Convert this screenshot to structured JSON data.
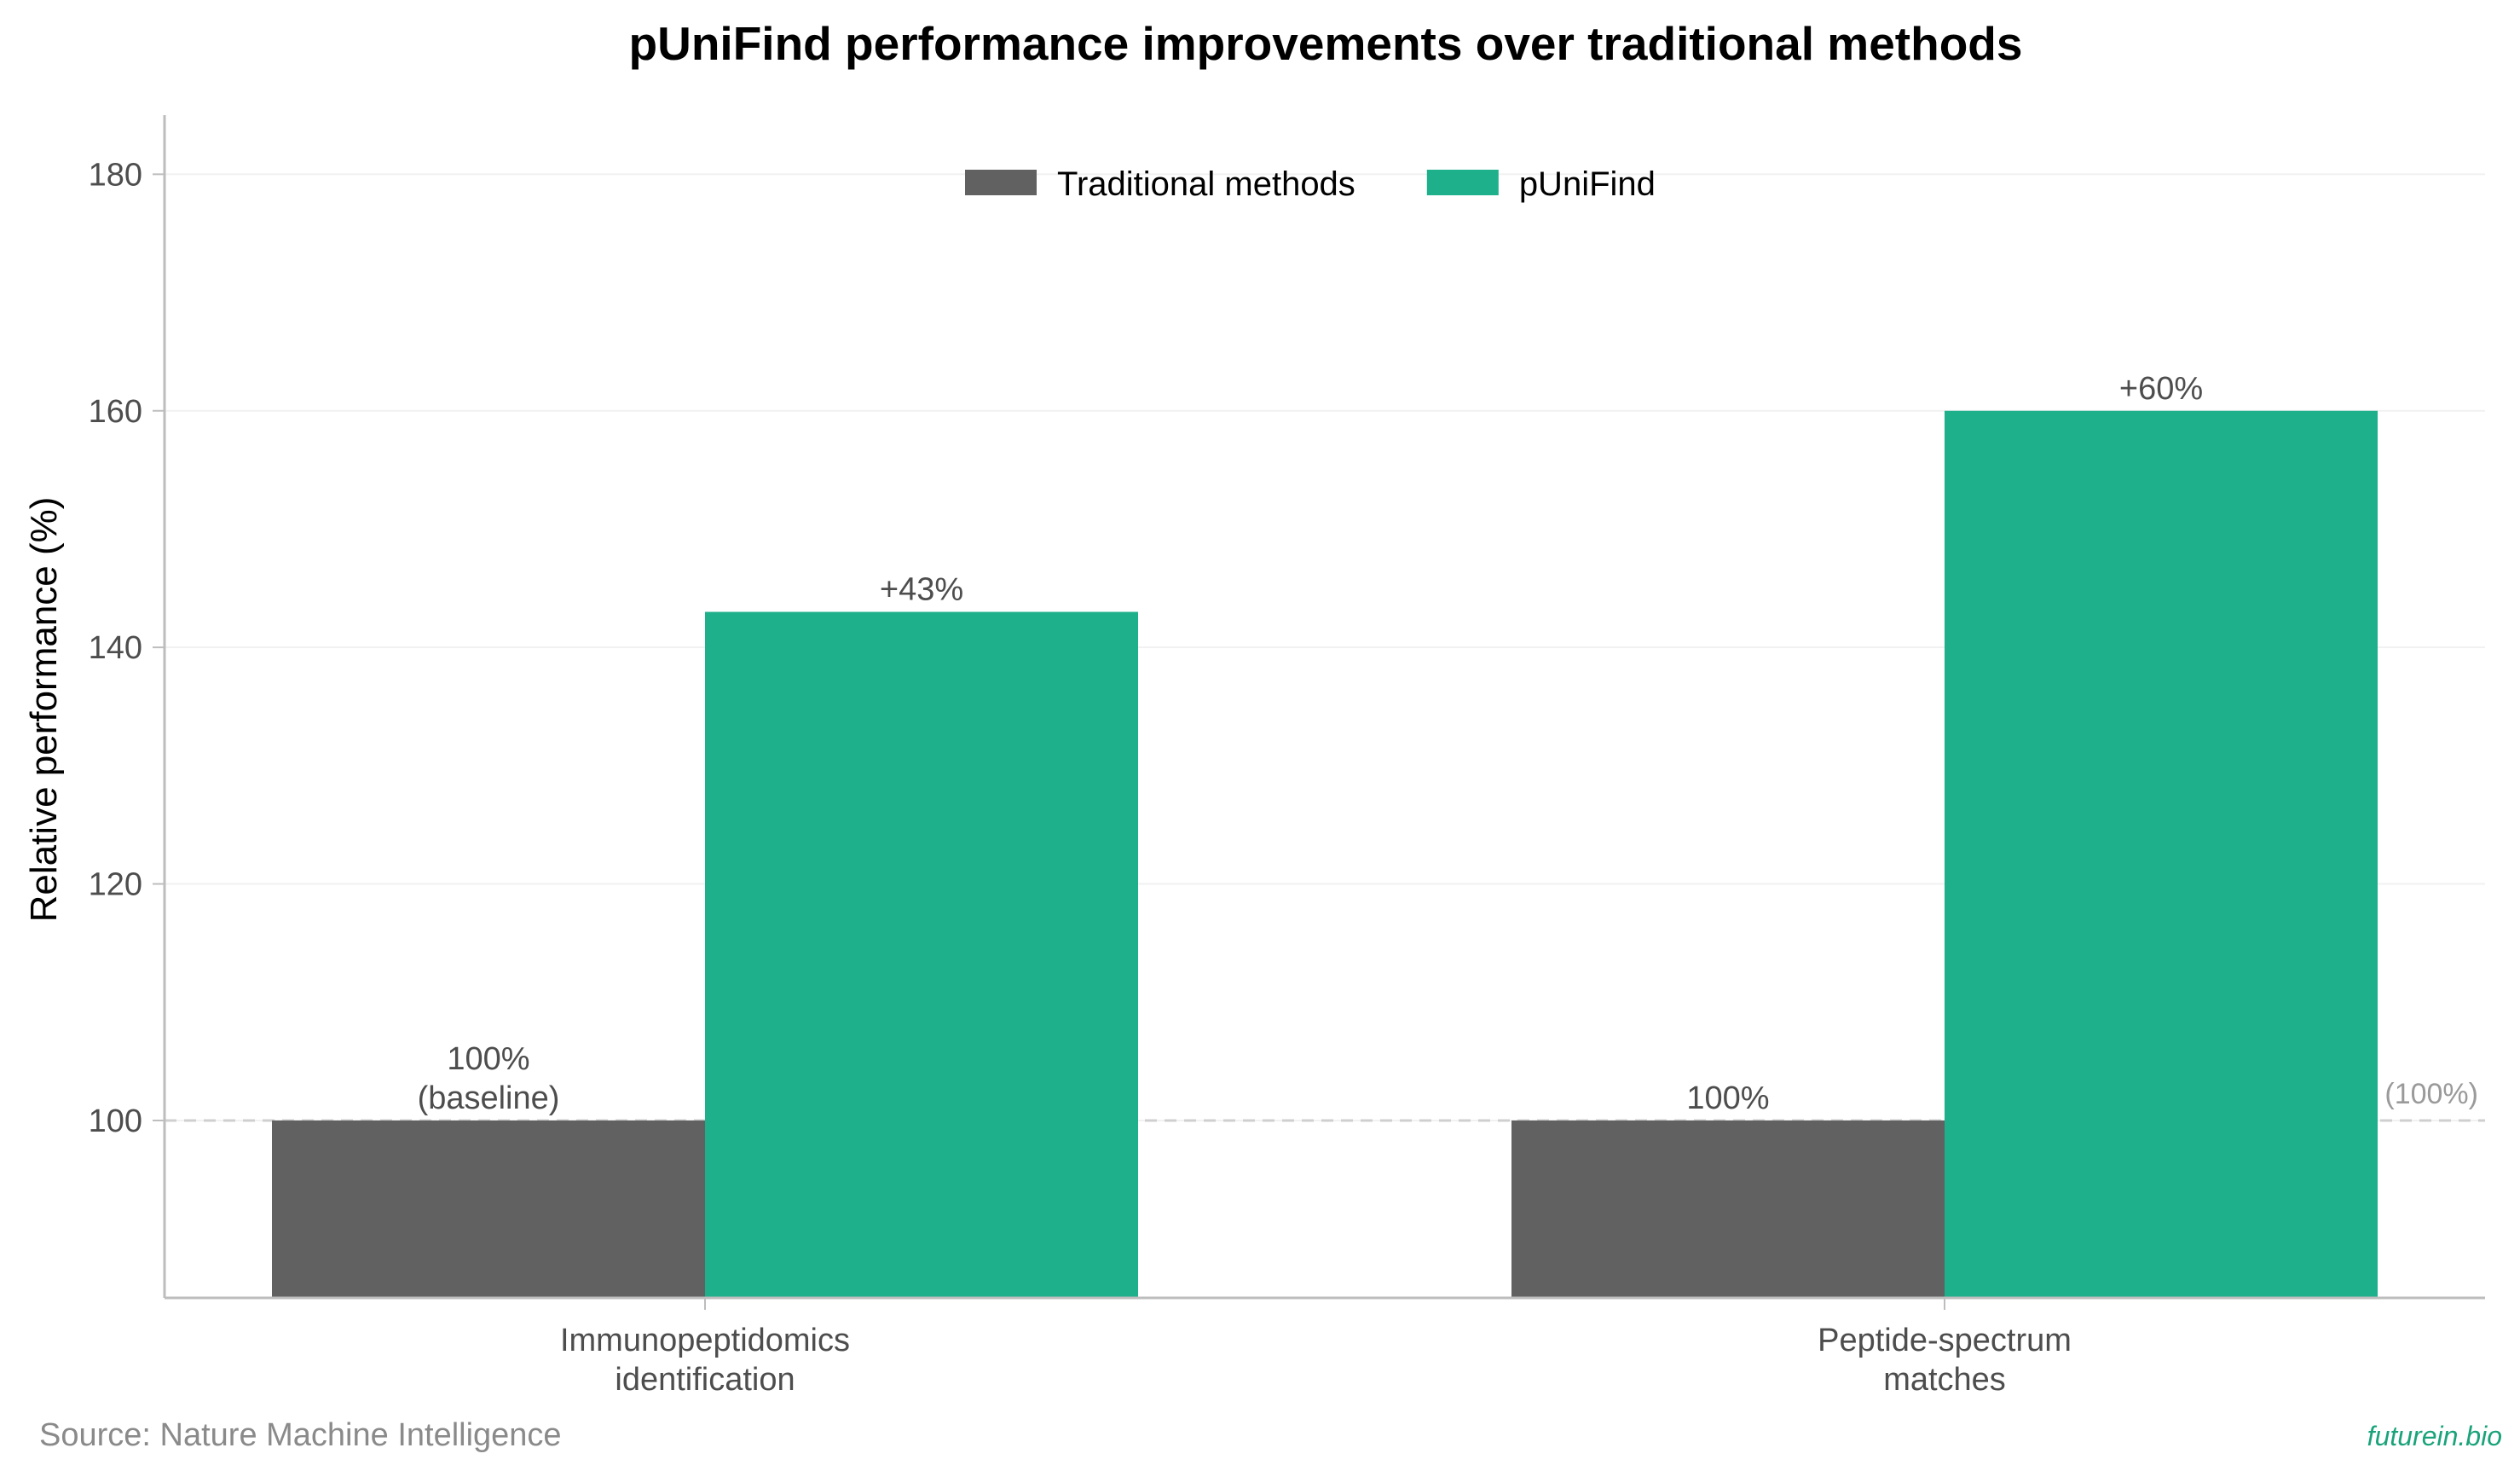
{
  "chart_data": {
    "type": "bar",
    "title": "pUniFind performance improvements over traditional methods",
    "xlabel": "",
    "ylabel": "Relative performance (%)",
    "categories": [
      [
        "Immunopeptidomics",
        "identification"
      ],
      [
        "Peptide-spectrum",
        "matches"
      ]
    ],
    "series": [
      {
        "name": "Traditional methods",
        "color": "#616161",
        "values": [
          100,
          100
        ],
        "labels": [
          [
            "100%",
            "(baseline)"
          ],
          [
            "100%"
          ]
        ]
      },
      {
        "name": "pUniFind",
        "color": "#1db08a",
        "values": [
          143,
          160
        ],
        "labels": [
          [
            "+43%"
          ],
          [
            "+60%"
          ]
        ]
      }
    ],
    "ylim": [
      85,
      185
    ],
    "yticks": [
      100,
      120,
      140,
      160,
      180
    ],
    "grid": true,
    "legend_position": "top-center",
    "reference_line": {
      "value": 100,
      "label": "Baseline (100%)",
      "style": "dashed",
      "color": "#cfcfcf"
    }
  },
  "footer": {
    "source": "Source: Nature Machine Intelligence",
    "watermark": "futurein.bio"
  }
}
